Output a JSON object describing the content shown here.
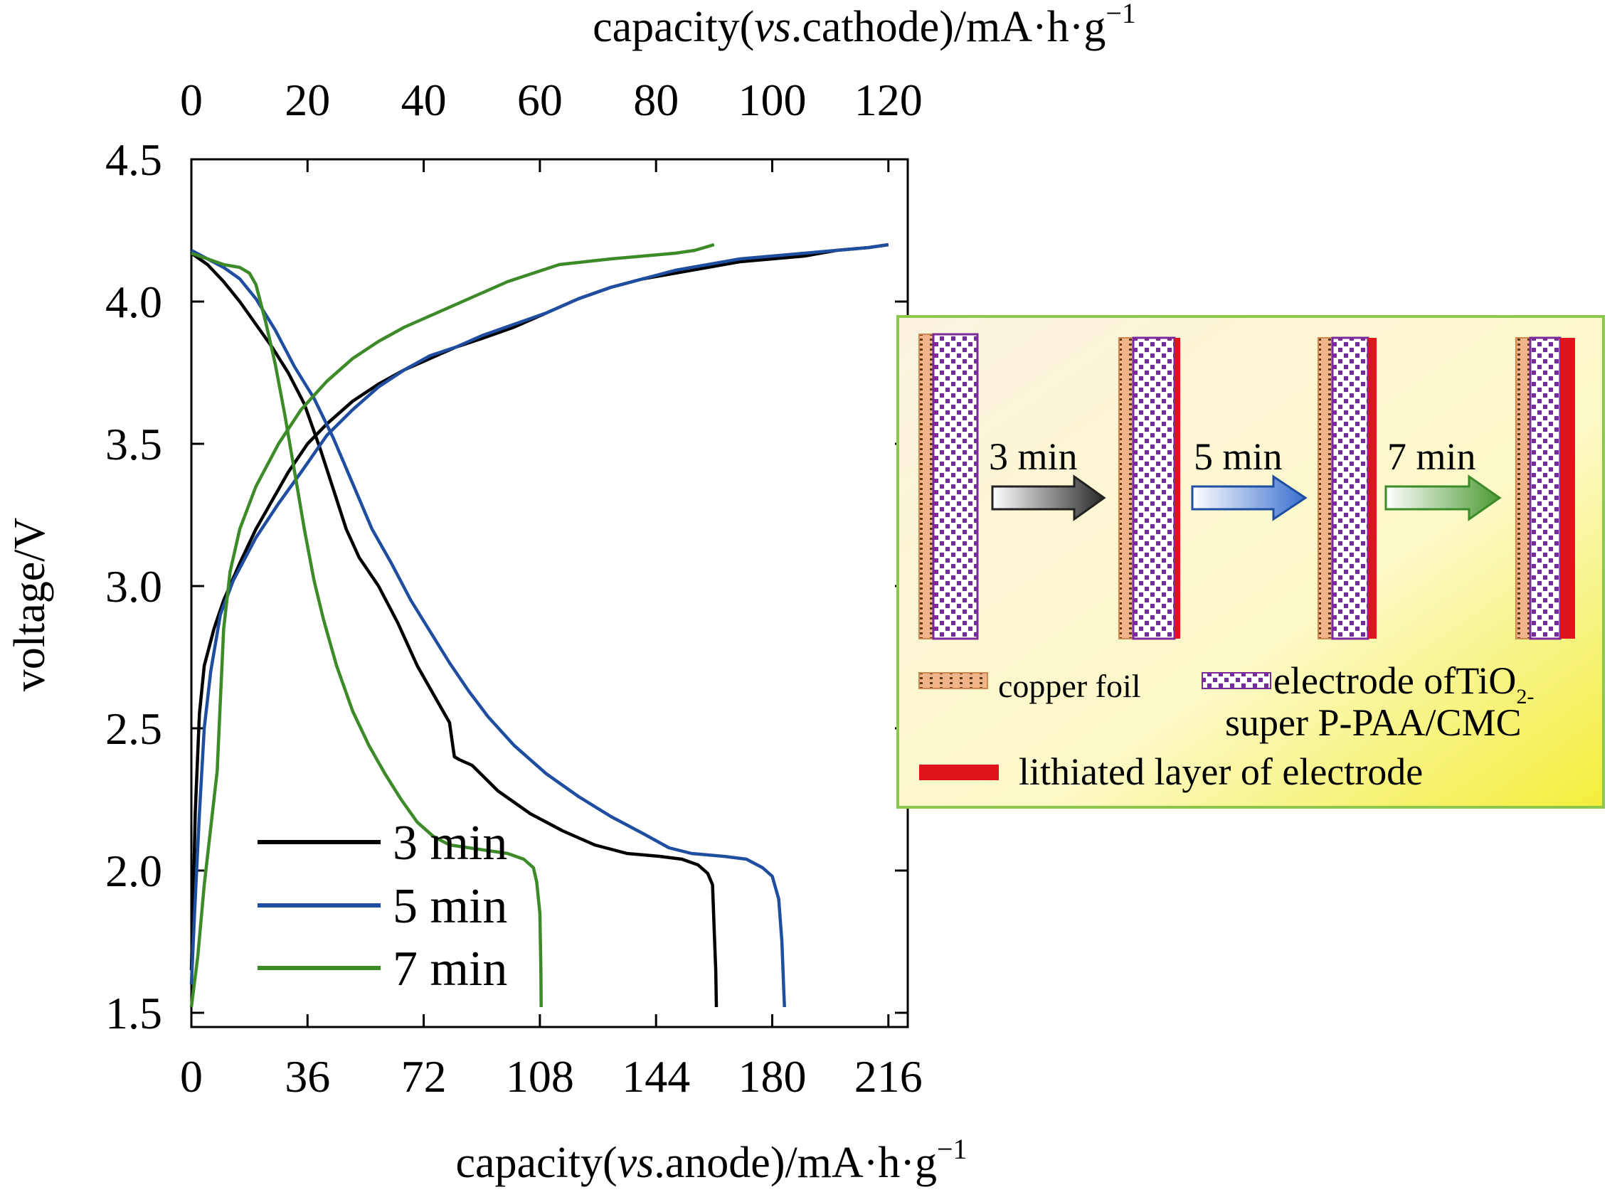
{
  "chart_data": {
    "type": "line",
    "title": "",
    "xlabel": {
      "prefix": "capacity(",
      "italic": "vs",
      "suffix": ".anode)/mA·h·g",
      "sup": "−1"
    },
    "x2label": {
      "prefix": "capacity(",
      "italic": "vs",
      "suffix": ".cathode)/mA·h·g",
      "sup": "−1"
    },
    "ylabel": "voltage/V",
    "xlim": [
      0,
      222
    ],
    "x2lim": [
      0,
      123.33
    ],
    "ylim": [
      1.45,
      4.5
    ],
    "x_ticks": [
      0,
      36,
      72,
      108,
      144,
      180,
      216
    ],
    "x_tick_labels": [
      "0",
      "36",
      "72",
      "108",
      "144",
      "180",
      "216"
    ],
    "x2_ticks": [
      0,
      20,
      40,
      60,
      80,
      100,
      120
    ],
    "x2_tick_labels": [
      "0",
      "20",
      "40",
      "60",
      "80",
      "100",
      "120"
    ],
    "y_ticks": [
      1.5,
      2.0,
      2.5,
      3.0,
      3.5,
      4.0,
      4.5
    ],
    "y_tick_labels": [
      "1.5",
      "2.0",
      "2.5",
      "3.0",
      "3.5",
      "4.0",
      "4.5"
    ],
    "grid": false,
    "legend_position": "bottom-left",
    "series": [
      {
        "name": "3 min",
        "color": "#000000",
        "charge": [
          [
            0,
            1.65
          ],
          [
            0.5,
            1.85
          ],
          [
            1.2,
            2.2
          ],
          [
            2.5,
            2.55
          ],
          [
            4,
            2.72
          ],
          [
            7,
            2.85
          ],
          [
            10,
            2.95
          ],
          [
            15,
            3.08
          ],
          [
            20,
            3.2
          ],
          [
            25,
            3.3
          ],
          [
            30,
            3.4
          ],
          [
            36,
            3.5
          ],
          [
            42,
            3.57
          ],
          [
            50,
            3.65
          ],
          [
            58,
            3.71
          ],
          [
            66,
            3.76
          ],
          [
            74,
            3.8
          ],
          [
            82,
            3.84
          ],
          [
            90,
            3.87
          ],
          [
            100,
            3.91
          ],
          [
            110,
            3.96
          ],
          [
            120,
            4.01
          ],
          [
            130,
            4.05
          ],
          [
            140,
            4.08
          ],
          [
            150,
            4.1
          ],
          [
            160,
            4.12
          ],
          [
            170,
            4.14
          ],
          [
            180,
            4.15
          ],
          [
            190,
            4.16
          ],
          [
            200,
            4.18
          ],
          [
            210,
            4.19
          ],
          [
            216,
            4.2
          ]
        ],
        "discharge": [
          [
            0,
            4.17
          ],
          [
            5,
            4.13
          ],
          [
            10,
            4.07
          ],
          [
            15,
            4.0
          ],
          [
            20,
            3.92
          ],
          [
            25,
            3.84
          ],
          [
            30,
            3.75
          ],
          [
            35,
            3.64
          ],
          [
            40,
            3.48
          ],
          [
            44,
            3.34
          ],
          [
            48,
            3.2
          ],
          [
            52,
            3.1
          ],
          [
            58,
            3.0
          ],
          [
            64,
            2.87
          ],
          [
            70,
            2.72
          ],
          [
            76,
            2.6
          ],
          [
            80,
            2.52
          ],
          [
            81,
            2.44
          ],
          [
            81.5,
            2.4
          ],
          [
            83,
            2.39
          ],
          [
            87,
            2.37
          ],
          [
            95,
            2.28
          ],
          [
            105,
            2.2
          ],
          [
            115,
            2.14
          ],
          [
            125,
            2.09
          ],
          [
            135,
            2.06
          ],
          [
            145,
            2.05
          ],
          [
            152,
            2.04
          ],
          [
            157,
            2.02
          ],
          [
            160,
            1.99
          ],
          [
            161.5,
            1.95
          ],
          [
            162,
            1.8
          ],
          [
            162.5,
            1.65
          ],
          [
            162.7,
            1.52
          ]
        ]
      },
      {
        "name": "5 min",
        "color": "#1f4ea1",
        "charge": [
          [
            0,
            1.6
          ],
          [
            1,
            1.85
          ],
          [
            2.5,
            2.2
          ],
          [
            4,
            2.5
          ],
          [
            6,
            2.7
          ],
          [
            9,
            2.9
          ],
          [
            13,
            3.02
          ],
          [
            20,
            3.17
          ],
          [
            27,
            3.29
          ],
          [
            34,
            3.4
          ],
          [
            42,
            3.53
          ],
          [
            50,
            3.62
          ],
          [
            58,
            3.7
          ],
          [
            66,
            3.76
          ],
          [
            74,
            3.81
          ],
          [
            82,
            3.84
          ],
          [
            90,
            3.88
          ],
          [
            100,
            3.92
          ],
          [
            110,
            3.96
          ],
          [
            120,
            4.01
          ],
          [
            130,
            4.05
          ],
          [
            140,
            4.08
          ],
          [
            150,
            4.11
          ],
          [
            160,
            4.13
          ],
          [
            170,
            4.15
          ],
          [
            180,
            4.16
          ],
          [
            190,
            4.17
          ],
          [
            200,
            4.18
          ],
          [
            210,
            4.19
          ],
          [
            216,
            4.2
          ]
        ],
        "discharge": [
          [
            0,
            4.18
          ],
          [
            5,
            4.15
          ],
          [
            10,
            4.12
          ],
          [
            15,
            4.08
          ],
          [
            20,
            4.01
          ],
          [
            26,
            3.9
          ],
          [
            32,
            3.77
          ],
          [
            38,
            3.66
          ],
          [
            44,
            3.52
          ],
          [
            50,
            3.36
          ],
          [
            56,
            3.2
          ],
          [
            62,
            3.08
          ],
          [
            68,
            2.95
          ],
          [
            74,
            2.84
          ],
          [
            80,
            2.73
          ],
          [
            86,
            2.63
          ],
          [
            92,
            2.54
          ],
          [
            100,
            2.44
          ],
          [
            110,
            2.34
          ],
          [
            120,
            2.26
          ],
          [
            130,
            2.19
          ],
          [
            140,
            2.13
          ],
          [
            148,
            2.08
          ],
          [
            155,
            2.06
          ],
          [
            165,
            2.05
          ],
          [
            172,
            2.04
          ],
          [
            177,
            2.01
          ],
          [
            180,
            1.98
          ],
          [
            182,
            1.9
          ],
          [
            183,
            1.75
          ],
          [
            183.5,
            1.6
          ],
          [
            183.8,
            1.52
          ]
        ]
      },
      {
        "name": "7 min",
        "color": "#3c8a28",
        "charge": [
          [
            0,
            1.52
          ],
          [
            2,
            1.7
          ],
          [
            4,
            1.95
          ],
          [
            6,
            2.15
          ],
          [
            8,
            2.35
          ],
          [
            9,
            2.6
          ],
          [
            10,
            2.85
          ],
          [
            12,
            3.05
          ],
          [
            15,
            3.2
          ],
          [
            20,
            3.35
          ],
          [
            27,
            3.5
          ],
          [
            34,
            3.62
          ],
          [
            42,
            3.72
          ],
          [
            50,
            3.8
          ],
          [
            58,
            3.86
          ],
          [
            66,
            3.91
          ],
          [
            74,
            3.95
          ],
          [
            82,
            3.99
          ],
          [
            90,
            4.03
          ],
          [
            98,
            4.07
          ],
          [
            106,
            4.1
          ],
          [
            114,
            4.13
          ],
          [
            122,
            4.14
          ],
          [
            130,
            4.15
          ],
          [
            140,
            4.16
          ],
          [
            150,
            4.17
          ],
          [
            156,
            4.18
          ],
          [
            162,
            4.2
          ]
        ],
        "discharge": [
          [
            0,
            4.17
          ],
          [
            5,
            4.15
          ],
          [
            10,
            4.13
          ],
          [
            15,
            4.12
          ],
          [
            18,
            4.1
          ],
          [
            20,
            4.06
          ],
          [
            23,
            3.93
          ],
          [
            26,
            3.78
          ],
          [
            29,
            3.6
          ],
          [
            32,
            3.4
          ],
          [
            35,
            3.2
          ],
          [
            38,
            3.02
          ],
          [
            41,
            2.88
          ],
          [
            45,
            2.72
          ],
          [
            50,
            2.56
          ],
          [
            55,
            2.44
          ],
          [
            60,
            2.34
          ],
          [
            65,
            2.25
          ],
          [
            70,
            2.17
          ],
          [
            75,
            2.12
          ],
          [
            80,
            2.09
          ],
          [
            86,
            2.08
          ],
          [
            92,
            2.07
          ],
          [
            98,
            2.06
          ],
          [
            103,
            2.04
          ],
          [
            106,
            2.01
          ],
          [
            107,
            1.96
          ],
          [
            108,
            1.85
          ],
          [
            108.3,
            1.65
          ],
          [
            108.4,
            1.52
          ]
        ]
      }
    ],
    "legend": [
      {
        "label": "3 min",
        "color": "#000000"
      },
      {
        "label": "5 min",
        "color": "#1f4ea1"
      },
      {
        "label": "7 min",
        "color": "#3c8a28"
      }
    ],
    "inset": {
      "arrows": [
        {
          "label": "3 min",
          "color": "#222222",
          "fill_from": "#ffffff",
          "fill_to": "#2a2a2a"
        },
        {
          "label": "5 min",
          "color": "#1f4ea1",
          "fill_from": "#ffffff",
          "fill_to": "#3a6fcf"
        },
        {
          "label": "7 min",
          "color": "#3c8a28",
          "fill_from": "#ffffff",
          "fill_to": "#4d9a33"
        }
      ],
      "legend": {
        "copper_foil": "copper foil",
        "electrode_line1": "electrode ofTiO",
        "electrode_sub": "2-",
        "electrode_line2": "super P-PAA/CMC",
        "lithiated": "lithiated layer of electrode"
      },
      "colors": {
        "copper": "#e8a070",
        "electrode": "#7a2a9a",
        "lithiated": "#e0141a",
        "border": "#8cc84b"
      }
    }
  }
}
